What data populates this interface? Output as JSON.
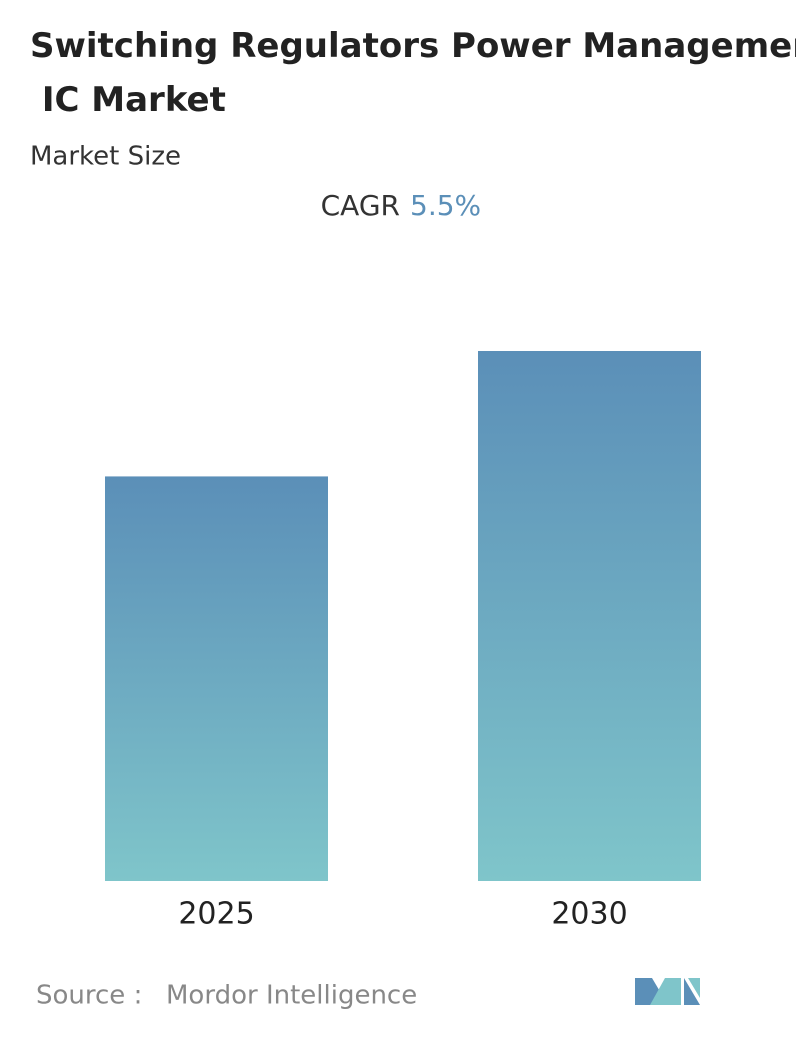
{
  "chart_data": {
    "type": "bar",
    "title": "Switching Regulators Power Management IC Market",
    "subtitle": "Market Size",
    "cagr_label": "CAGR",
    "cagr": "5.5%",
    "categories": [
      "2025",
      "2030"
    ],
    "values": [
      100,
      131
    ],
    "color_top": "#5b8fb8",
    "color_bottom": "#7fc5ca",
    "source_label": "Source :",
    "source": "Mordor Intelligence"
  }
}
